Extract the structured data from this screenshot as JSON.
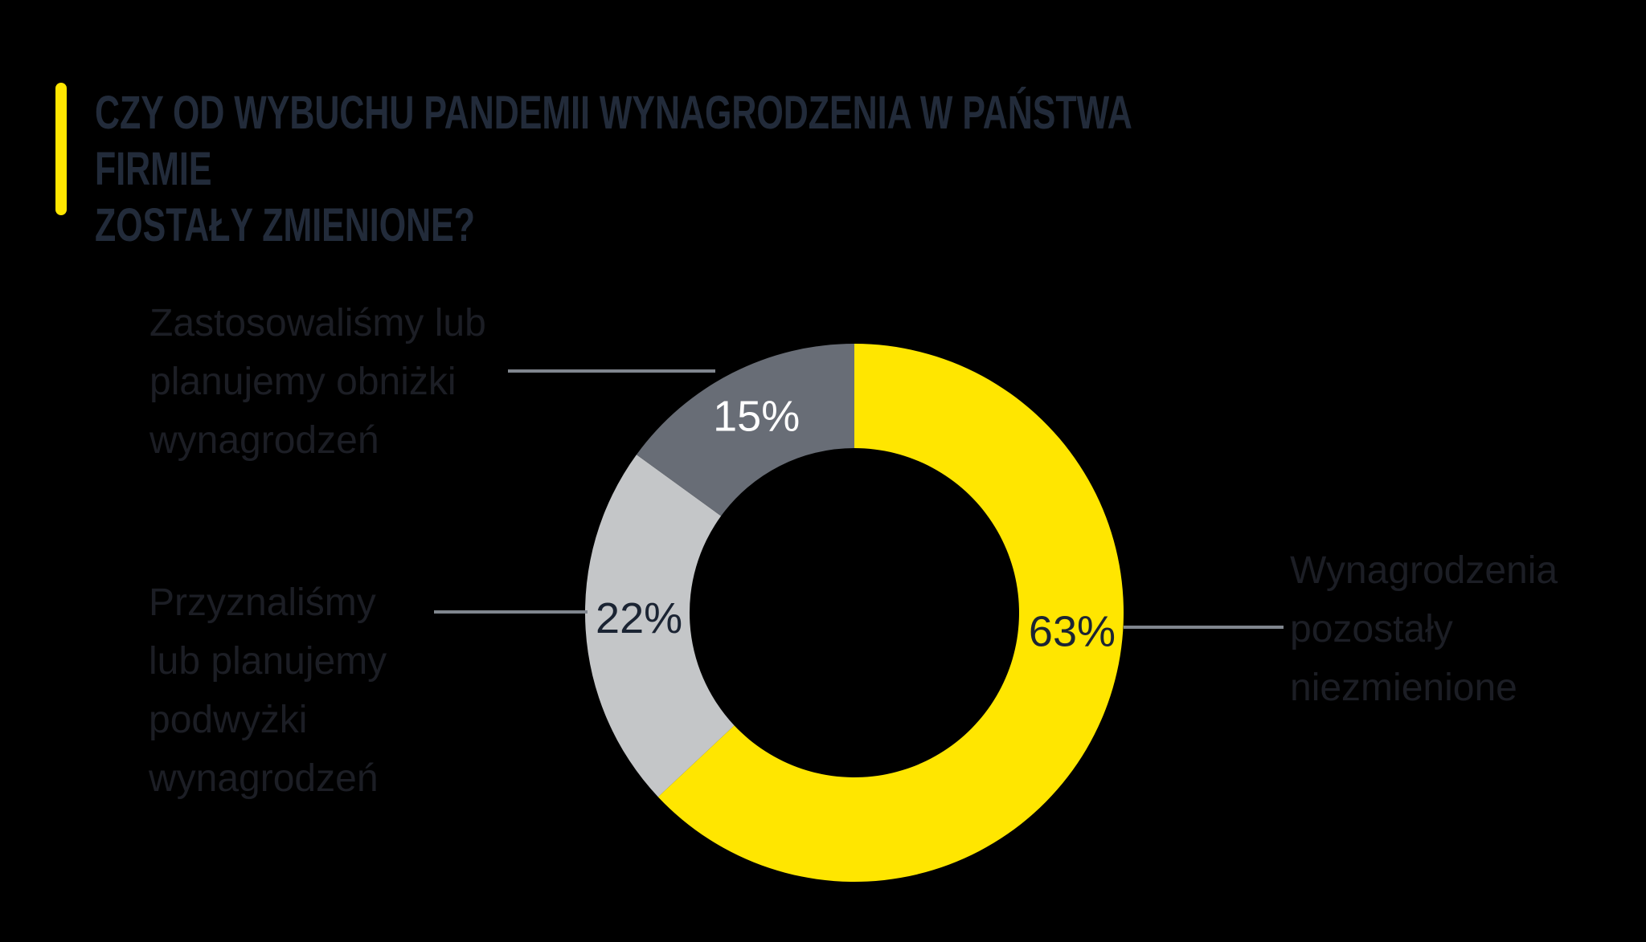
{
  "page": {
    "background_color": "#000000"
  },
  "header": {
    "accent_color": "#ffe600",
    "title": "CZY OD WYBUCHU PANDEMII WYNAGRODZENIA W PAŃSTWA FIRMIE\nZOSTAŁY ZMIENIONE?",
    "title_color": "#222b3a"
  },
  "chart_data": {
    "type": "pie",
    "variant": "donut",
    "direction": "clockwise",
    "start_angle_deg": 0,
    "unit": "%",
    "segments": [
      {
        "label": "Wynagrodzenia pozostały niezmienione",
        "value": 63,
        "display": "63%",
        "color": "#ffe600",
        "value_label_color": "#1b2433"
      },
      {
        "label": "Przyznaliśmy lub planujemy podwyżki wynagrodzeń",
        "value": 22,
        "display": "22%",
        "color": "#c4c6c8",
        "value_label_color": "#1b2433"
      },
      {
        "label": "Zastosowaliśmy lub planujemy obniżki wynagrodzeń",
        "value": 15,
        "display": "15%",
        "color": "#686d76",
        "value_label_color": "#ffffff"
      }
    ],
    "connector_color": "#80868e"
  },
  "annotations": {
    "left_top": "Zastosowaliśmy lub\nplanujemy obniżki\nwynagrodzeń",
    "left_bottom": "Przyznaliśmy\nlub planujemy\npodwyżki\nwynagrodzeń",
    "right": "Wynagrodzenia\npozostały\nniezmienione",
    "text_color": "#1c1e25"
  }
}
